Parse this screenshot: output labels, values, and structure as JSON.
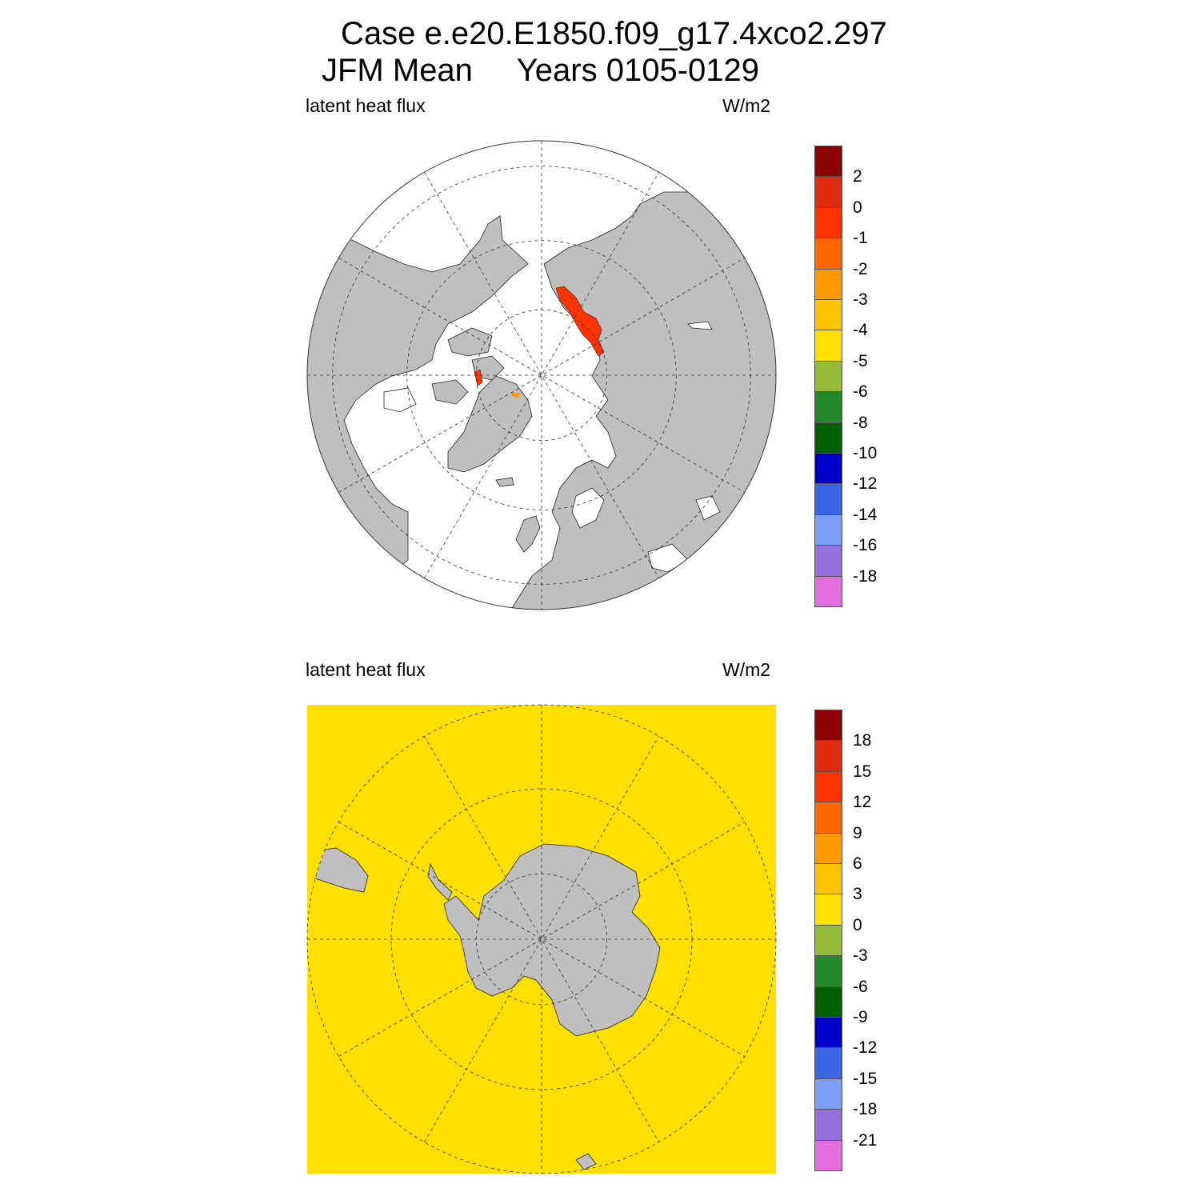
{
  "title": {
    "line1": "Case e.e20.E1850.f09_g17.4xco2.297",
    "line2": "JFM Mean     Years 0105-0129"
  },
  "colors": {
    "land": "#bfbfbf",
    "ocean_top": "#ffffff",
    "ocean_bottom": "#fde000",
    "grid": "#333333",
    "anomaly": "#ff3300",
    "ice_edge_small": "#ff9900"
  },
  "panels": [
    {
      "id": "north",
      "projection": "north-polar-stereographic",
      "left_label": "latent heat flux",
      "right_label": "W/m2",
      "colorbar": {
        "labels": [
          "2",
          "0",
          "-1",
          "-2",
          "-3",
          "-4",
          "-5",
          "-6",
          "-8",
          "-10",
          "-12",
          "-14",
          "-16",
          "-18"
        ],
        "colors": [
          "#8b0000",
          "#dd2b0e",
          "#ff3300",
          "#ff6600",
          "#ff9900",
          "#ffc400",
          "#fde000",
          "#93bb38",
          "#22882a",
          "#005f00",
          "#0000c8",
          "#3a64e2",
          "#7a9ef4",
          "#9370db",
          "#e36ddd"
        ]
      }
    },
    {
      "id": "south",
      "projection": "south-polar-stereographic",
      "left_label": "latent heat flux",
      "right_label": "W/m2",
      "colorbar": {
        "labels": [
          "18",
          "15",
          "12",
          "9",
          "6",
          "3",
          "0",
          "-3",
          "-6",
          "-9",
          "-12",
          "-15",
          "-18",
          "-21"
        ],
        "colors": [
          "#8b0000",
          "#dd2b0e",
          "#ff3300",
          "#ff6600",
          "#ff9900",
          "#ffc400",
          "#fde000",
          "#93bb38",
          "#22882a",
          "#005f00",
          "#0000c8",
          "#3a64e2",
          "#7a9ef4",
          "#9370db",
          "#e36ddd"
        ]
      }
    }
  ]
}
